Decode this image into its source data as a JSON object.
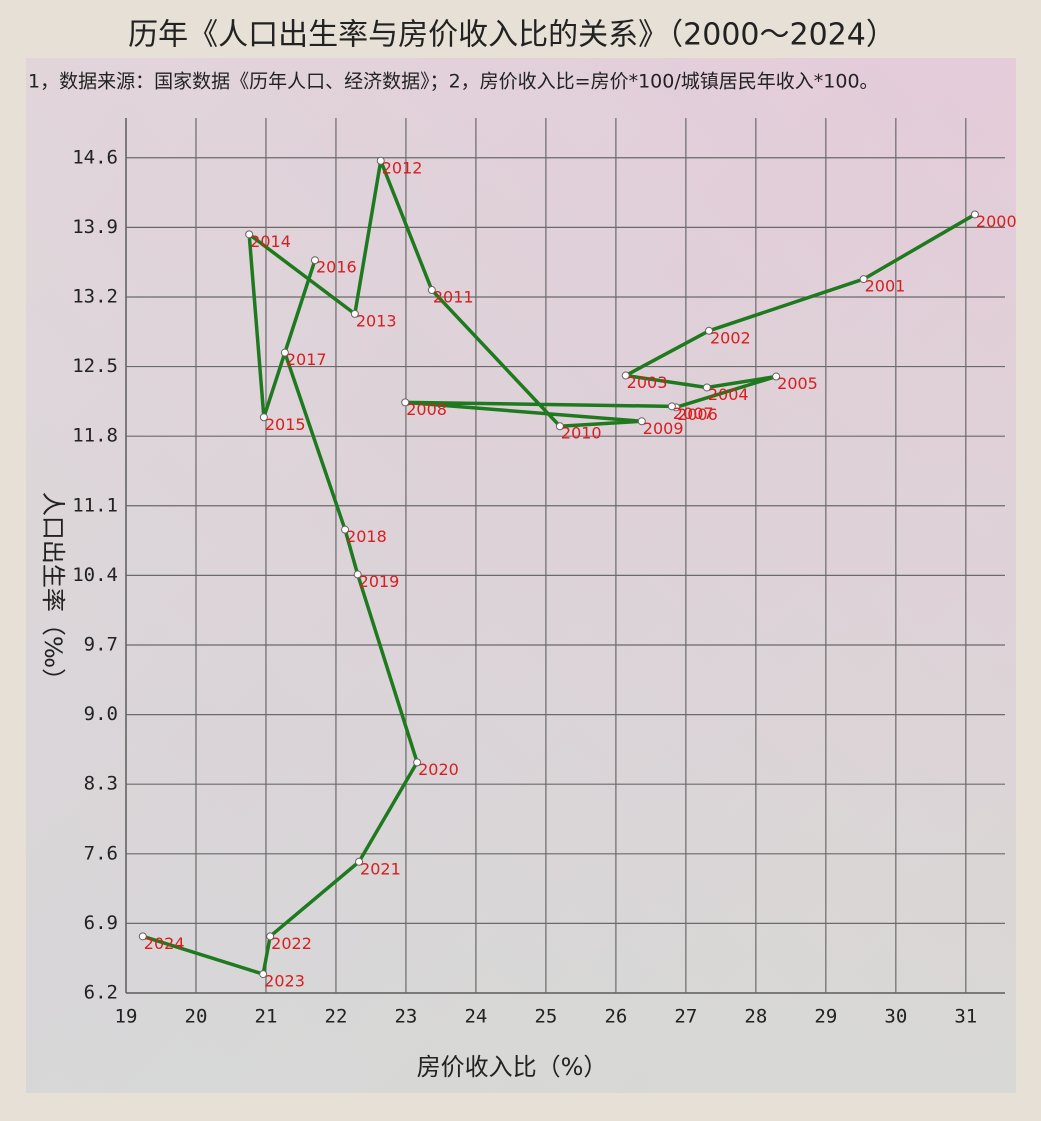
{
  "chart_data": {
    "type": "line",
    "title": "历年《人口出生率与房价收入比的关系》（2000～2024）",
    "subtitle": "1，数据来源：国家数据《历年人口、经济数据》；2，房价收入比=房价*100/城镇居民年收入*100。",
    "xlabel": "房价收入比（%）",
    "ylabel": "人口出生率（‰）",
    "x": [
      31.13,
      29.54,
      27.33,
      26.14,
      27.3,
      28.29,
      26.86,
      26.8,
      22.99,
      26.37,
      25.2,
      23.37,
      22.64,
      22.27,
      20.76,
      20.97,
      21.7,
      21.27,
      22.13,
      22.31,
      23.16,
      22.33,
      21.06,
      20.96,
      19.24
    ],
    "values": [
      14.03,
      13.38,
      12.86,
      12.41,
      12.29,
      12.4,
      12.09,
      12.1,
      12.14,
      11.95,
      11.9,
      13.27,
      14.57,
      13.03,
      13.83,
      11.99,
      13.57,
      12.64,
      10.86,
      10.41,
      8.52,
      7.52,
      6.77,
      6.39,
      6.77
    ],
    "point_labels": [
      "2000",
      "2001",
      "2002",
      "2003",
      "2004",
      "2005",
      "2006",
      "2007",
      "2008",
      "2009",
      "2010",
      "2011",
      "2012",
      "2013",
      "2014",
      "2015",
      "2016",
      "2017",
      "2018",
      "2019",
      "2020",
      "2021",
      "2022",
      "2023",
      "2024"
    ],
    "color": "#1f7a1f",
    "label_color": "#d81e1e",
    "xlim": [
      19,
      31.56
    ],
    "ylim": [
      6.2,
      15.0
    ],
    "xticks": [
      19,
      20,
      21,
      22,
      23,
      24,
      25,
      26,
      27,
      28,
      29,
      30,
      31
    ],
    "yticks": [
      6.2,
      6.9,
      7.6,
      8.3,
      {
        "value": 9,
        "label": "9.0"
      },
      9.7,
      10.4,
      11.1,
      11.8,
      12.5,
      13.2,
      13.9,
      14.6
    ],
    "grid": true
  }
}
